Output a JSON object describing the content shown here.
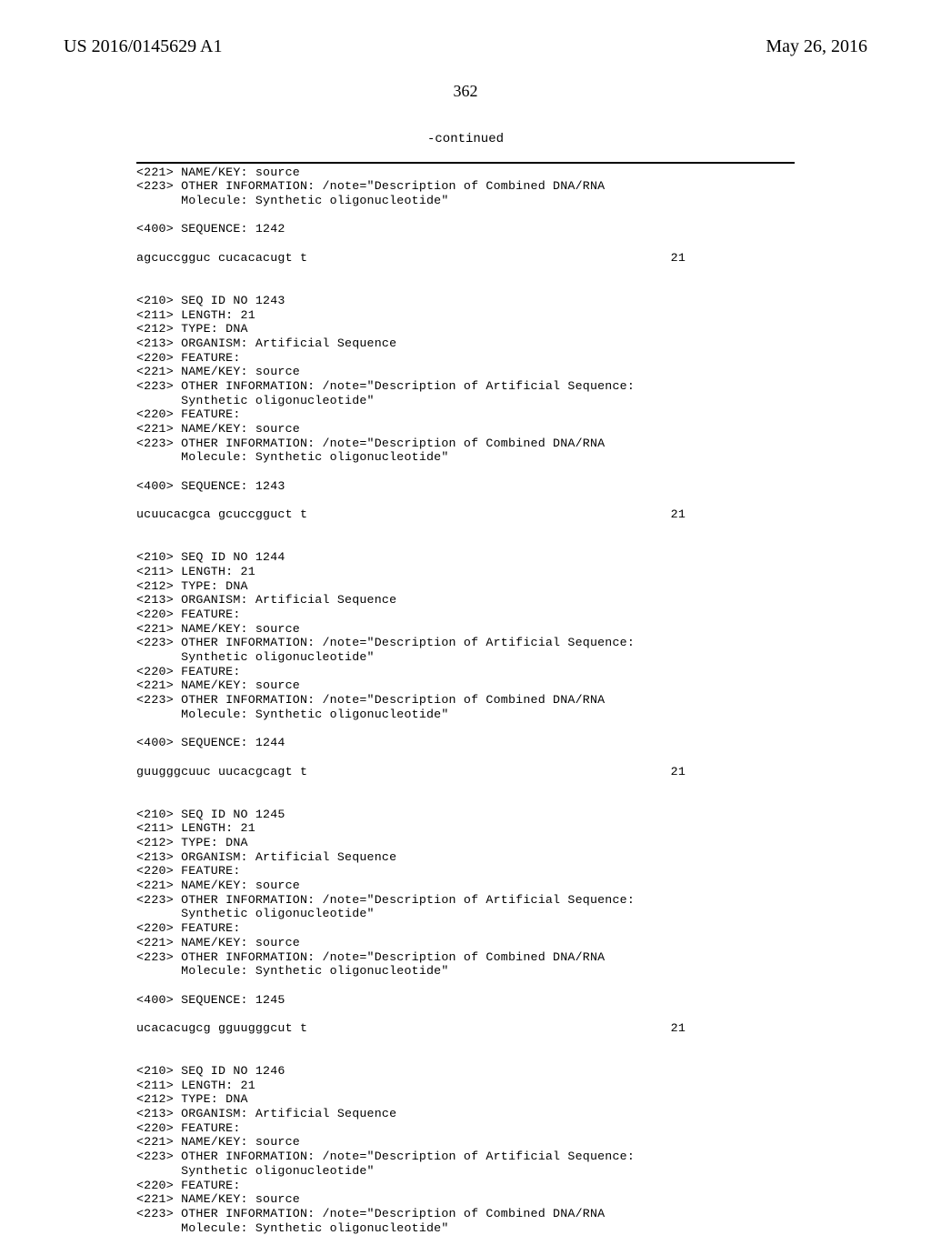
{
  "header": {
    "left": "US 2016/0145629 A1",
    "right": "May 26, 2016"
  },
  "pageNumber": "362",
  "continuedLabel": "-continued",
  "nameKeySource": "<221> NAME/KEY: source",
  "line_223_dna_rna": "<223> OTHER INFORMATION: /note=\"Description of Combined DNA/RNA",
  "line_223_artificial": "<223> OTHER INFORMATION: /note=\"Description of Artificial Sequence:",
  "line_molecule": "      Molecule: Synthetic oligonucleotide\"",
  "line_synthetic": "      Synthetic oligonucleotide\"",
  "line_feature": "<220> FEATURE:",
  "line_length21": "<211> LENGTH: 21",
  "line_typeDNA": "<212> TYPE: DNA",
  "line_organism": "<213> ORGANISM: Artificial Sequence",
  "pos21": "21",
  "seq1242": {
    "seq": "<400> SEQUENCE: 1242",
    "data": "agcuccgguc cucacacugt t"
  },
  "seq1243": {
    "id": "<210> SEQ ID NO 1243",
    "seq": "<400> SEQUENCE: 1243",
    "data": "ucuucacgca gcuccgguct t"
  },
  "seq1244": {
    "id": "<210> SEQ ID NO 1244",
    "seq": "<400> SEQUENCE: 1244",
    "data": "guugggcuuc uucacgcagt t"
  },
  "seq1245": {
    "id": "<210> SEQ ID NO 1245",
    "seq": "<400> SEQUENCE: 1245",
    "data": "ucacacugcg gguugggcut t"
  },
  "seq1246": {
    "id": "<210> SEQ ID NO 1246"
  }
}
